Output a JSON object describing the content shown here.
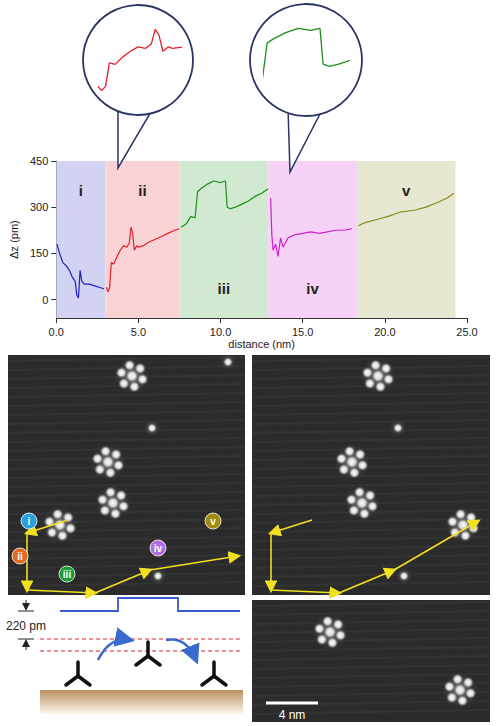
{
  "chart_data": {
    "type": "line",
    "x_label": "distance (nm)",
    "y_label": "Δz (pm)",
    "xlim": [
      0,
      25
    ],
    "xticks": [
      {
        "value": 0,
        "label": "0.0"
      },
      {
        "value": 5,
        "label": "5.0"
      },
      {
        "value": 10,
        "label": "10.0"
      },
      {
        "value": 15,
        "label": "15.0"
      },
      {
        "value": 20,
        "label": "20.0"
      },
      {
        "value": 25,
        "label": "25.0"
      }
    ],
    "ylim": [
      -60,
      450
    ],
    "yticks": [
      0,
      150,
      300,
      450
    ],
    "grid": false,
    "series": [
      {
        "name": "i",
        "color": "#2020c0",
        "span": [
          0,
          3
        ],
        "values": [
          [
            0.05,
            180
          ],
          [
            0.2,
            150
          ],
          [
            0.4,
            120
          ],
          [
            0.6,
            110
          ],
          [
            0.8,
            95
          ],
          [
            1.0,
            70
          ],
          [
            1.15,
            60
          ],
          [
            1.25,
            15
          ],
          [
            1.35,
            5
          ],
          [
            1.45,
            95
          ],
          [
            1.55,
            60
          ],
          [
            1.7,
            50
          ],
          [
            2.0,
            50
          ],
          [
            2.3,
            45
          ],
          [
            2.6,
            40
          ],
          [
            2.9,
            35
          ]
        ]
      },
      {
        "name": "ii",
        "color": "#e0202c",
        "span": [
          3,
          7.5
        ],
        "values": [
          [
            3.05,
            40
          ],
          [
            3.15,
            25
          ],
          [
            3.25,
            40
          ],
          [
            3.35,
            120
          ],
          [
            3.5,
            115
          ],
          [
            3.7,
            140
          ],
          [
            3.9,
            160
          ],
          [
            4.1,
            175
          ],
          [
            4.3,
            170
          ],
          [
            4.45,
            185
          ],
          [
            4.55,
            235
          ],
          [
            4.65,
            215
          ],
          [
            4.75,
            160
          ],
          [
            4.9,
            175
          ],
          [
            5.0,
            170
          ],
          [
            5.3,
            175
          ],
          [
            5.6,
            185
          ],
          [
            6.0,
            195
          ],
          [
            6.4,
            205
          ],
          [
            6.8,
            215
          ],
          [
            7.2,
            225
          ],
          [
            7.5,
            230
          ]
        ]
      },
      {
        "name": "iii",
        "color": "#1a8f1a",
        "span": [
          7.5,
          12.9
        ],
        "values": [
          [
            7.6,
            235
          ],
          [
            7.9,
            245
          ],
          [
            8.2,
            270
          ],
          [
            8.45,
            265
          ],
          [
            8.6,
            350
          ],
          [
            8.8,
            360
          ],
          [
            9.2,
            375
          ],
          [
            9.6,
            385
          ],
          [
            10.0,
            380
          ],
          [
            10.3,
            385
          ],
          [
            10.4,
            300
          ],
          [
            10.6,
            295
          ],
          [
            10.9,
            300
          ],
          [
            11.3,
            310
          ],
          [
            11.7,
            320
          ],
          [
            12.1,
            335
          ],
          [
            12.5,
            345
          ],
          [
            12.9,
            360
          ]
        ]
      },
      {
        "name": "iv",
        "color": "#d020d0",
        "span": [
          12.9,
          18.3
        ],
        "values": [
          [
            13.05,
            330
          ],
          [
            13.12,
            210
          ],
          [
            13.2,
            160
          ],
          [
            13.35,
            180
          ],
          [
            13.5,
            140
          ],
          [
            13.65,
            200
          ],
          [
            13.8,
            170
          ],
          [
            14.1,
            200
          ],
          [
            14.5,
            210
          ],
          [
            15.0,
            215
          ],
          [
            15.5,
            220
          ],
          [
            16.0,
            215
          ],
          [
            16.5,
            220
          ],
          [
            17.0,
            225
          ],
          [
            17.5,
            225
          ],
          [
            18.0,
            230
          ]
        ]
      },
      {
        "name": "v",
        "color": "#8a8a20",
        "span": [
          18.3,
          24.3
        ],
        "values": [
          [
            18.4,
            240
          ],
          [
            18.8,
            250
          ],
          [
            19.5,
            260
          ],
          [
            20.2,
            270
          ],
          [
            21.0,
            285
          ],
          [
            21.8,
            290
          ],
          [
            22.5,
            300
          ],
          [
            23.2,
            315
          ],
          [
            23.8,
            330
          ],
          [
            24.2,
            345
          ]
        ]
      }
    ],
    "insets": [
      {
        "series": "ii",
        "xlim": [
          3,
          5.2
        ],
        "ylim": [
          0,
          260
        ]
      },
      {
        "series": "iii",
        "xlim": [
          8.5,
          11.2
        ],
        "ylim": [
          220,
          400
        ]
      }
    ]
  },
  "images": {
    "path_labels": [
      {
        "label": "i",
        "color": "#2a9fe0"
      },
      {
        "label": "ii",
        "color": "#e06a20"
      },
      {
        "label": "iii",
        "color": "#1a9a3a"
      },
      {
        "label": "iv",
        "color": "#b070e0"
      },
      {
        "label": "v",
        "color": "#a08a10"
      }
    ],
    "height_label": "220 pm",
    "scale_bar": "4 nm"
  }
}
